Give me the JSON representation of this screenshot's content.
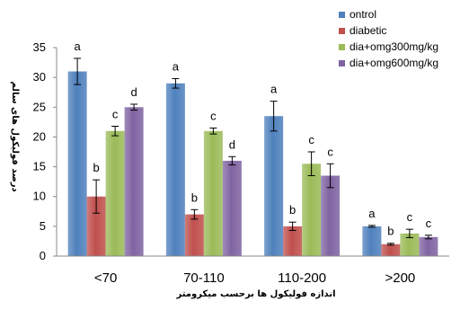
{
  "chart_data": {
    "type": "bar",
    "title": "",
    "xlabel": "اندازه فولیکول ها برحسب میکرومتر",
    "ylabel": "درصد فولیکول های سالم",
    "ylim": [
      0,
      35
    ],
    "yticks": [
      0,
      5,
      10,
      15,
      20,
      25,
      30,
      35
    ],
    "grid": false,
    "legend_position": "top-right",
    "categories": [
      "<70",
      "70-110",
      "110-200",
      ">200"
    ],
    "series": [
      {
        "name": "ontrol",
        "color": "#4F81BD",
        "values": [
          31,
          29,
          23.5,
          5
        ],
        "errors": [
          2.2,
          0.8,
          2.5,
          0.15
        ],
        "labels": [
          "a",
          "a",
          "a",
          "a"
        ]
      },
      {
        "name": "diabetic",
        "color": "#C0504D",
        "values": [
          10,
          7,
          5,
          2
        ],
        "errors": [
          2.8,
          0.8,
          0.7,
          0.15
        ],
        "labels": [
          "b",
          "b",
          "b",
          "b"
        ]
      },
      {
        "name": "dia+omg300mg/kg",
        "color": "#9BBB59",
        "values": [
          21,
          21,
          15.5,
          3.8
        ],
        "errors": [
          0.8,
          0.5,
          2.0,
          0.7
        ],
        "labels": [
          "c",
          "c",
          "c",
          "c"
        ]
      },
      {
        "name": "dia+omg600mg/kg",
        "color": "#8064A2",
        "values": [
          25,
          16,
          13.5,
          3.2
        ],
        "errors": [
          0.5,
          0.7,
          2.0,
          0.3
        ],
        "labels": [
          "d",
          "d",
          "c",
          "c"
        ]
      }
    ]
  }
}
